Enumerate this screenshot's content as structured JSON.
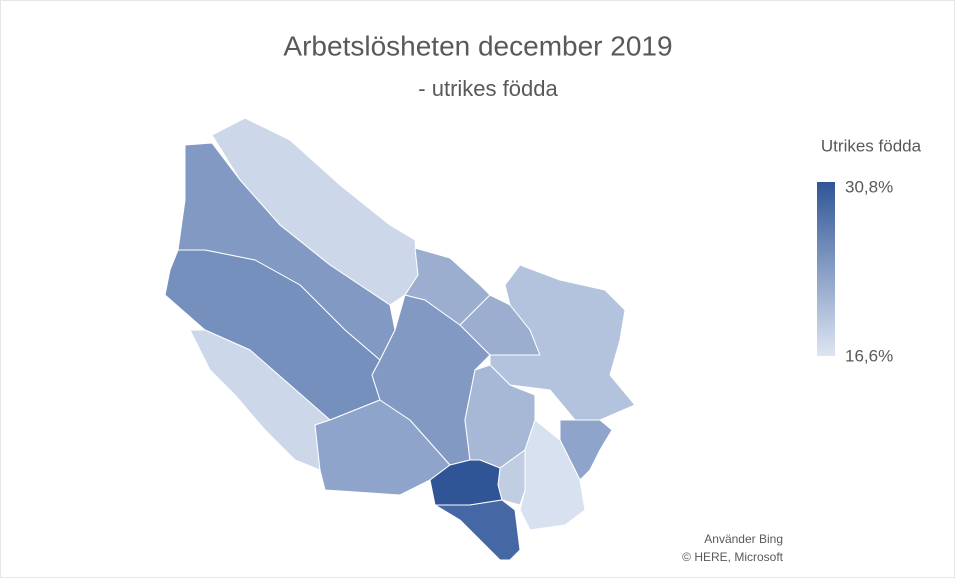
{
  "map": {
    "title": "Arbetslösheten december 2019",
    "subtitle": "- utrikes födda",
    "legend": {
      "title": "Utrikes födda",
      "min": {
        "value": 16.6,
        "label": "16,6%"
      },
      "max": {
        "value": 30.8,
        "label": "30,8%"
      },
      "colors": [
        "#dde5f3",
        "#2f5597"
      ]
    },
    "values": [
      18,
      24,
      25,
      18,
      23,
      24,
      22,
      22,
      20,
      21,
      23,
      17,
      19,
      30.8,
      29
    ],
    "attribution": [
      "Använder Bing",
      "© HERE, Microsoft"
    ]
  }
}
